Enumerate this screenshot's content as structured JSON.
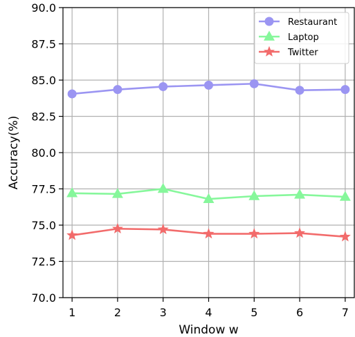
{
  "chart_data": {
    "type": "line",
    "title": "",
    "xlabel": "Window w",
    "ylabel": "Accuracy(%)",
    "x": [
      1,
      2,
      3,
      4,
      5,
      6,
      7
    ],
    "xlim": [
      0.8,
      7.2
    ],
    "ylim": [
      70.0,
      90.0
    ],
    "yticks": [
      "70.0",
      "72.5",
      "75.0",
      "77.5",
      "80.0",
      "82.5",
      "85.0",
      "87.5",
      "90.0"
    ],
    "grid": true,
    "legend_position": "top-right",
    "series": [
      {
        "name": "Restaurant",
        "color": "#9b95f2",
        "marker": "circle",
        "values": [
          84.05,
          84.35,
          84.55,
          84.65,
          84.75,
          84.3,
          84.35
        ]
      },
      {
        "name": "Laptop",
        "color": "#86f79b",
        "marker": "triangle",
        "values": [
          77.2,
          77.15,
          77.5,
          76.8,
          77.0,
          77.1,
          76.95
        ]
      },
      {
        "name": "Twitter",
        "color": "#f26b6b",
        "marker": "star",
        "values": [
          74.3,
          74.75,
          74.7,
          74.4,
          74.4,
          74.45,
          74.2
        ]
      }
    ]
  }
}
